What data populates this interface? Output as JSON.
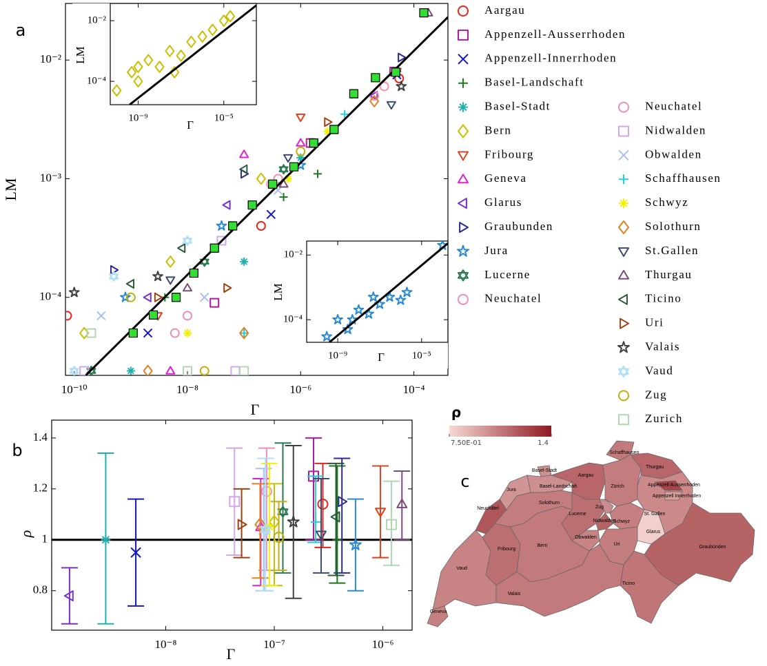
{
  "chart_data": [
    {
      "type": "scatter",
      "panel_label": "a",
      "x_label": "Γ",
      "y_label": "LM",
      "log_x": true,
      "log_y": true,
      "legend": "right",
      "xlim": [
        7e-11,
        0.0004
      ],
      "ylim": [
        2.2e-05,
        0.03
      ],
      "xticks": [
        {
          "value": 1e-10,
          "label": "10⁻¹⁰"
        },
        {
          "value": 1e-08,
          "label": "10⁻⁸"
        },
        {
          "value": 1e-06,
          "label": "10⁻⁶"
        },
        {
          "value": 0.0001,
          "label": "10⁻⁴"
        }
      ],
      "yticks": [
        {
          "value": 0.0001,
          "label": "10⁻⁴"
        },
        {
          "value": 0.001,
          "label": "10⁻³"
        },
        {
          "value": 0.01,
          "label": "10⁻²"
        }
      ],
      "series": [
        {
          "name": "Aargau",
          "color": "#e8231e",
          "marker": "circle",
          "x": [
            7.5e-11,
            2e-07,
            5.5e-05
          ],
          "values": [
            7e-05,
            0.0004,
            0.007
          ]
        },
        {
          "name": "Appenzell-Ausserrhoden",
          "color": "#b0189e",
          "marker": "square",
          "x": [
            3e-08,
            1.5e-06,
            4.5e-05
          ],
          "values": [
            9e-05,
            0.002,
            0.008
          ]
        },
        {
          "name": "Appenzell-Innerrhoden",
          "color": "#1414c8",
          "marker": "x",
          "x": [
            2e-09,
            3e-07,
            5e-05
          ],
          "values": [
            5e-05,
            0.0005,
            0.0075
          ]
        },
        {
          "name": "Basel-Landschaft",
          "color": "#1a7a1a",
          "marker": "plus",
          "x": [
            4e-09,
            5e-07,
            2e-06
          ],
          "values": [
            0.0001,
            0.0007,
            0.0011
          ]
        },
        {
          "name": "Basel-Stadt",
          "color": "#20b0b0",
          "marker": "asterisk",
          "x": [
            1e-09,
            1e-07,
            1e-06
          ],
          "values": [
            2.4e-05,
            0.0002,
            0.0015
          ]
        },
        {
          "name": "Bern",
          "color": "#c8c000",
          "marker": "diamond",
          "x": [
            1.5e-10,
            5e-09,
            2e-07
          ],
          "values": [
            5e-05,
            0.0002,
            0.001
          ]
        },
        {
          "name": "Fribourg",
          "color": "#e0401a",
          "marker": "tri-down",
          "x": [
            3e-09,
            1e-06,
            5e-05
          ],
          "values": [
            7e-05,
            0.0033,
            0.008
          ]
        },
        {
          "name": "Geneva",
          "color": "#e020d8",
          "marker": "tri-up",
          "x": [
            5e-09,
            1e-07,
            1e-06
          ],
          "values": [
            2.4e-05,
            0.0016,
            0.002
          ]
        },
        {
          "name": "Glarus",
          "color": "#7a30d0",
          "marker": "tri-left",
          "x": [
            2e-09,
            5e-08,
            2e-05
          ],
          "values": [
            0.0001,
            0.0006,
            0.005
          ]
        },
        {
          "name": "Graubunden",
          "color": "#2a2a90",
          "marker": "tri-right",
          "x": [
            5e-10,
            1e-07,
            6e-05
          ],
          "values": [
            0.00017,
            0.0011,
            0.0105
          ]
        },
        {
          "name": "Jura",
          "color": "#2a8ad0",
          "marker": "star",
          "x": [
            8e-10,
            4e-08,
            1e-06
          ],
          "values": [
            0.0001,
            0.0004,
            0.0013
          ]
        },
        {
          "name": "Lucerne",
          "color": "#2a7a50",
          "marker": "hexagram",
          "x": [
            2e-10,
            2e-08,
            5e-07
          ],
          "values": [
            2.4e-05,
            0.0002,
            0.0012
          ]
        },
        {
          "name": "Neuchatel",
          "color": "#f090b0",
          "marker": "circle",
          "x": [
            6e-09,
            3e-07,
            2e-05
          ],
          "values": [
            5e-05,
            0.0009,
            0.005
          ]
        },
        {
          "name": "Neuchatel",
          "color": "#f090b0",
          "marker": "circle",
          "x": [
            1e-08,
            4e-07,
            3e-05
          ],
          "values": [
            7e-05,
            0.001,
            0.006
          ]
        },
        {
          "name": "Nidwalden",
          "color": "#d0a8e8",
          "marker": "square",
          "x": [
            1.5e-10,
            4e-08,
            7e-08
          ],
          "values": [
            2.4e-05,
            0.0003,
            2.4e-05
          ]
        },
        {
          "name": "Obwalden",
          "color": "#a8c0f0",
          "marker": "x",
          "x": [
            3e-10,
            2e-08,
            4e-07
          ],
          "values": [
            7e-05,
            0.0001,
            0.0008
          ]
        },
        {
          "name": "Schaffhausen",
          "color": "#20d0e0",
          "marker": "plus",
          "x": [
            1e-07,
            2e-06,
            6e-06
          ],
          "values": [
            5e-05,
            0.002,
            0.0035
          ]
        },
        {
          "name": "Schwyz",
          "color": "#f0f000",
          "marker": "asterisk",
          "x": [
            1e-08,
            6e-07,
            3e-06
          ],
          "values": [
            5e-05,
            0.001,
            0.0025
          ]
        },
        {
          "name": "Solothurn",
          "color": "#e08020",
          "marker": "diamond",
          "x": [
            2e-09,
            1e-07,
            2e-05
          ],
          "values": [
            2.4e-05,
            5e-05,
            0.0045
          ]
        },
        {
          "name": "St.Gallen",
          "color": "#3a4a70",
          "marker": "tri-down",
          "x": [
            5e-09,
            6e-07,
            4e-05
          ],
          "values": [
            0.00014,
            0.0015,
            0.0042
          ]
        },
        {
          "name": "Thurgau",
          "color": "#7a4a7a",
          "marker": "tri-up",
          "x": [
            1e-08,
            5e-07,
            0.00018
          ],
          "values": [
            0.00012,
            0.0009,
            0.025
          ]
        },
        {
          "name": "Ticino",
          "color": "#2a5a3a",
          "marker": "tri-left",
          "x": [
            1e-09,
            8e-09,
            1e-07
          ],
          "values": [
            0.00013,
            0.00026,
            0.0012
          ]
        },
        {
          "name": "Uri",
          "color": "#a04010",
          "marker": "tri-right",
          "x": [
            3e-09,
            5e-08,
            3e-06
          ],
          "values": [
            0.0001,
            0.00012,
            0.003
          ]
        },
        {
          "name": "Valais",
          "color": "#404040",
          "marker": "star",
          "x": [
            1e-10,
            3e-09,
            6e-05
          ],
          "values": [
            0.00011,
            0.00015,
            0.006
          ]
        },
        {
          "name": "Vaud",
          "color": "#b0e0f8",
          "marker": "hexagram",
          "x": [
            1e-10,
            5e-10,
            1e-08
          ],
          "values": [
            2.4e-05,
            0.00015,
            0.0003
          ]
        },
        {
          "name": "Zug",
          "color": "#c0b010",
          "marker": "circle",
          "x": [
            1e-09,
            2e-08,
            1e-06
          ],
          "values": [
            0.0001,
            2.4e-05,
            0.0017
          ]
        },
        {
          "name": "Zurich",
          "color": "#b0d8b0",
          "marker": "square",
          "x": [
            2e-10,
            1e-08,
            1e-07
          ],
          "values": [
            5e-05,
            2.4e-05,
            2.4e-05
          ]
        }
      ],
      "binned": {
        "color": "#33dd33",
        "marker": "square",
        "x": [
          1.1e-09,
          2.5e-09,
          6.3e-09,
          1.3e-08,
          3e-08,
          6.3e-08,
          1.4e-07,
          3.2e-07,
          7.6e-07,
          1.7e-06,
          3.9e-06,
          8.7e-06,
          2.1e-05,
          4.8e-05,
          0.00015
        ],
        "values": [
          5e-05,
          7.1e-05,
          0.0001,
          0.00016,
          0.00026,
          0.0004,
          0.0006,
          0.0009,
          0.00126,
          0.002,
          0.0026,
          0.0052,
          0.0071,
          0.0079,
          0.025
        ]
      },
      "fit": {
        "color": "#000000",
        "x": [
          1.6e-10,
          0.0004
        ],
        "values": [
          2.2e-05,
          0.023
        ]
      }
    },
    {
      "type": "scatter",
      "x_label": "Γ",
      "y_label": "LM",
      "log_x": true,
      "log_y": true,
      "xlim": [
        5e-11,
        0.00033
      ],
      "ylim": [
        1.7e-05,
        0.037
      ],
      "xticks": [
        {
          "value": 1e-09,
          "label": "10⁻⁹"
        },
        {
          "value": 1e-05,
          "label": "10⁻⁵"
        }
      ],
      "yticks": [
        {
          "value": 0.0001,
          "label": "10⁻⁴"
        },
        {
          "value": 0.01,
          "label": "10⁻²"
        }
      ],
      "color": "#c8c000",
      "marker": "diamond",
      "x": [
        1e-10,
        5e-10,
        1e-09,
        3e-09,
        1e-08,
        3e-08,
        1e-07,
        3e-07,
        1e-06,
        3e-06,
        1e-05,
        2e-05,
        1e-09,
        5e-08
      ],
      "values": [
        5e-05,
        0.0002,
        0.0001,
        0.0005,
        0.0003,
        0.001,
        0.0007,
        0.002,
        0.003,
        0.005,
        0.01,
        0.014,
        0.0003,
        0.0002
      ],
      "fit": {
        "color": "#000000",
        "x": [
          4e-10,
          0.00033
        ],
        "values": [
          1.7e-05,
          0.032
        ]
      }
    },
    {
      "type": "scatter",
      "x_label": "Γ",
      "y_label": "LM",
      "log_x": true,
      "log_y": true,
      "xlim": [
        3.3e-11,
        0.00018
      ],
      "ylim": [
        2e-05,
        0.027
      ],
      "xticks": [
        {
          "value": 1e-09,
          "label": "10⁻⁹"
        },
        {
          "value": 1e-05,
          "label": "10⁻⁵"
        }
      ],
      "yticks": [
        {
          "value": 0.0001,
          "label": "10⁻⁴"
        },
        {
          "value": 0.01,
          "label": "10⁻²"
        }
      ],
      "color": "#2a8ad0",
      "marker": "star",
      "x": [
        3e-10,
        1e-09,
        3e-09,
        1e-08,
        3e-08,
        1e-07,
        3e-07,
        1e-06,
        2e-06,
        0.0001,
        5e-09,
        5e-08
      ],
      "values": [
        3e-05,
        0.0001,
        5e-05,
        0.0002,
        0.00015,
        0.0003,
        0.0005,
        0.0004,
        0.0007,
        0.02,
        0.0001,
        0.0005
      ],
      "fit": {
        "color": "#000000",
        "x": [
          4e-10,
          0.00018
        ],
        "values": [
          2e-05,
          0.023
        ]
      }
    },
    {
      "type": "errorbar",
      "panel_label": "b",
      "x_label": "Γ",
      "y_label": "ρ",
      "log_x": true,
      "log_y": false,
      "xlim": [
        8.9e-10,
        1.86e-06
      ],
      "ylim": [
        0.645,
        1.47
      ],
      "xticks": [
        {
          "value": 1e-08,
          "label": "10⁻⁸"
        },
        {
          "value": 1e-07,
          "label": "10⁻⁷"
        },
        {
          "value": 1e-06,
          "label": "10⁻⁶"
        }
      ],
      "yticks": [
        0.8,
        1,
        1.2,
        1.4
      ],
      "hline": 1,
      "x": [
        2.8e-07,
        2.3e-07,
        5.3e-09,
        3.8e-07,
        2.8e-09,
        1e-07,
        9.5e-07,
        7.5e-08,
        1.3e-09,
        4.2e-07,
        5.6e-07,
        1.2e-07,
        8.5e-08,
        4.3e-08,
        8e-08,
        2.4e-07,
        9e-08,
        7.4e-08,
        2.7e-07,
        1.5e-06,
        3.7e-07,
        5e-08,
        1.5e-07,
        8.3e-08,
        1.1e-07,
        1.2e-06
      ],
      "values": [
        1.14,
        1.25,
        0.95,
        1.0,
        1.0,
        1.07,
        1.11,
        1.05,
        0.78,
        1.15,
        0.98,
        1.11,
        1.19,
        1.15,
        1.04,
        1.07,
        1.05,
        1.06,
        1.02,
        1.14,
        1.09,
        1.06,
        1.07,
        1.04,
        1.01,
        1.06
      ],
      "lower": [
        0.97,
        1.0,
        0.74,
        0.83,
        0.67,
        0.82,
        0.93,
        0.82,
        0.67,
        0.87,
        0.8,
        0.87,
        0.88,
        0.94,
        0.8,
        0.99,
        0.82,
        0.85,
        0.87,
        1.0,
        0.86,
        0.93,
        0.77,
        0.8,
        0.88,
        0.9
      ],
      "upper": [
        1.3,
        1.4,
        1.16,
        1.29,
        1.34,
        1.22,
        1.29,
        1.24,
        0.89,
        1.32,
        1.16,
        1.38,
        1.36,
        1.36,
        1.28,
        1.25,
        1.3,
        1.22,
        1.24,
        1.27,
        1.3,
        1.2,
        1.37,
        1.32,
        1.15,
        1.23
      ],
      "colors": [
        "#e8231e",
        "#b0189e",
        "#1414c8",
        "#1a7a1a",
        "#20b0b0",
        "#c8c000",
        "#e0401a",
        "#e020d8",
        "#7a30d0",
        "#2a2a90",
        "#2a8ad0",
        "#2a7a50",
        "#f090b0",
        "#d0a8e8",
        "#a8c0f0",
        "#20d0e0",
        "#f0f000",
        "#e08020",
        "#3a4a70",
        "#7a4a7a",
        "#2a5a3a",
        "#a04010",
        "#404040",
        "#b0e0f8",
        "#c0b010",
        "#b0d8b0"
      ],
      "markers": [
        "circle",
        "square",
        "x",
        "plus",
        "asterisk",
        "diamond",
        "tri-down",
        "tri-up",
        "tri-left",
        "tri-right",
        "star",
        "hexagram",
        "circle",
        "square",
        "x",
        "plus",
        "asterisk",
        "diamond",
        "tri-down",
        "tri-up",
        "tri-left",
        "tri-right",
        "star",
        "hexagram",
        "circle",
        "square"
      ]
    },
    {
      "type": "map",
      "panel_label": "c",
      "title": "ρ",
      "colorbar_ticks": [
        {
          "value": 0.75,
          "label": "7.50E-01"
        },
        1.4
      ],
      "colormap": [
        "#f6d8d4",
        "#8e1a22"
      ],
      "regions": [
        "Aargau",
        "Appenzell Ausserrhoden",
        "Appenzell Innerrhoden",
        "Basel-Landschaft",
        "Basel-Stadt",
        "Bern",
        "Fribourg",
        "Geneva",
        "Glarus",
        "Graubünden",
        "Jura",
        "Lucerne",
        "Neuchâtel",
        "Nidwalden",
        "Obwalden",
        "Schaffhausen",
        "Schwyz",
        "Solothurn",
        "St. Gallen",
        "Thurgau",
        "Ticino",
        "Uri",
        "Valais",
        "Vaud",
        "Zug",
        "Zürich"
      ]
    }
  ]
}
